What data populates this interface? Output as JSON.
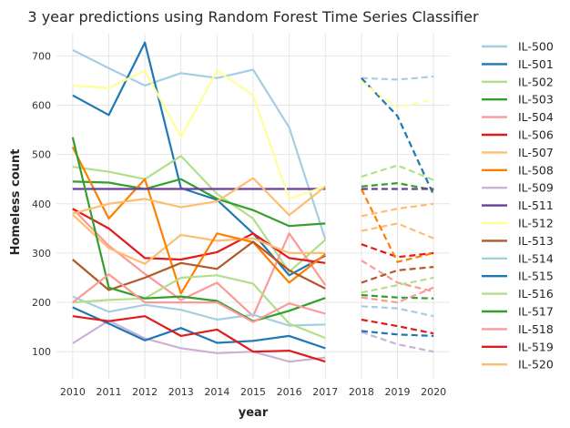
{
  "chart_data": {
    "type": "line",
    "title": "3 year predictions using Random Forest Time Series Classifier",
    "xlabel": "year",
    "ylabel": "Homeless count",
    "x_history": [
      2010,
      2011,
      2012,
      2013,
      2014,
      2015,
      2016,
      2017
    ],
    "x_forecast": [
      2018,
      2019,
      2020
    ],
    "xticks": [
      "2010",
      "2011",
      "2012",
      "2013",
      "2014",
      "2015",
      "2016",
      "2017",
      "2018",
      "2019",
      "2020"
    ],
    "yticks": [
      100,
      200,
      300,
      400,
      500,
      600,
      700
    ],
    "ylim": [
      45,
      745
    ],
    "grid": true,
    "legend_placement": "right",
    "series": [
      {
        "name": "IL-500",
        "color": "#a6cee3",
        "values": [
          712,
          675,
          640,
          665,
          655,
          672,
          555,
          328
        ],
        "forecast": [
          655,
          652,
          658
        ]
      },
      {
        "name": "IL-501",
        "color": "#1f78b4",
        "values": [
          620,
          580,
          727,
          432,
          408,
          340,
          255,
          295
        ],
        "forecast": [
          655,
          578,
          418
        ]
      },
      {
        "name": "IL-502",
        "color": "#b2df8a",
        "values": [
          475,
          465,
          450,
          497,
          420,
          370,
          262,
          327
        ],
        "forecast": [
          455,
          478,
          448
        ]
      },
      {
        "name": "IL-503",
        "color": "#33a02c",
        "values": [
          445,
          443,
          430,
          450,
          410,
          387,
          355,
          360
        ],
        "forecast": [
          435,
          442,
          428
        ]
      },
      {
        "name": "IL-504",
        "color": "#fb9a99",
        "values": [
          390,
          315,
          258,
          205,
          240,
          172,
          340,
          235
        ],
        "forecast": [
          285,
          240,
          222
        ]
      },
      {
        "name": "IL-506",
        "color": "#e31a1c",
        "values": [
          390,
          350,
          290,
          287,
          302,
          340,
          290,
          280
        ],
        "forecast": [
          318,
          292,
          300
        ]
      },
      {
        "name": "IL-507",
        "color": "#fdbf6f",
        "values": [
          378,
          310,
          278,
          337,
          325,
          330,
          300,
          300
        ],
        "forecast": [
          345,
          360,
          330
        ]
      },
      {
        "name": "IL-508",
        "color": "#ff7f00",
        "values": [
          515,
          370,
          450,
          218,
          340,
          322,
          240,
          298
        ],
        "forecast": [
          430,
          282,
          300
        ]
      },
      {
        "name": "IL-509",
        "color": "#cab2d6",
        "values": [
          117,
          163,
          127,
          107,
          97,
          100,
          80,
          88
        ],
        "forecast": [
          140,
          115,
          100
        ]
      },
      {
        "name": "IL-511",
        "color": "#6a3d9a",
        "values": [
          430,
          430,
          430,
          430,
          430,
          430,
          430,
          430
        ],
        "forecast": [
          430,
          430,
          430
        ]
      },
      {
        "name": "IL-512",
        "color": "#ffff99",
        "values": [
          640,
          635,
          670,
          535,
          670,
          620,
          410,
          435
        ],
        "forecast": [
          648,
          595,
          612
        ]
      },
      {
        "name": "IL-513",
        "color": "#b15928",
        "values": [
          287,
          225,
          250,
          280,
          268,
          323,
          265,
          228
        ],
        "forecast": [
          240,
          265,
          272
        ]
      },
      {
        "name": "IL-514",
        "color": "#a6cee3",
        "values": [
          212,
          181,
          195,
          185,
          165,
          175,
          153,
          155
        ],
        "forecast": [
          192,
          188,
          172
        ]
      },
      {
        "name": "IL-515",
        "color": "#1f78b4",
        "values": [
          190,
          157,
          123,
          148,
          118,
          122,
          132,
          107
        ],
        "forecast": [
          142,
          135,
          132
        ]
      },
      {
        "name": "IL-516",
        "color": "#b2df8a",
        "values": [
          200,
          205,
          208,
          250,
          255,
          238,
          157,
          128
        ],
        "forecast": [
          220,
          235,
          250
        ]
      },
      {
        "name": "IL-517",
        "color": "#33a02c",
        "values": [
          535,
          230,
          208,
          212,
          203,
          162,
          183,
          209
        ],
        "forecast": [
          215,
          210,
          208
        ]
      },
      {
        "name": "IL-518",
        "color": "#fb9a99",
        "values": [
          200,
          257,
          200,
          200,
          200,
          160,
          198,
          177
        ],
        "forecast": [
          210,
          200,
          230
        ]
      },
      {
        "name": "IL-519",
        "color": "#e31a1c",
        "values": [
          172,
          162,
          172,
          132,
          145,
          100,
          102,
          80
        ],
        "forecast": [
          165,
          152,
          137
        ]
      },
      {
        "name": "IL-520",
        "color": "#fdbf6f",
        "values": [
          380,
          400,
          410,
          393,
          405,
          452,
          377,
          435
        ],
        "forecast": [
          375,
          390,
          400
        ]
      }
    ]
  }
}
